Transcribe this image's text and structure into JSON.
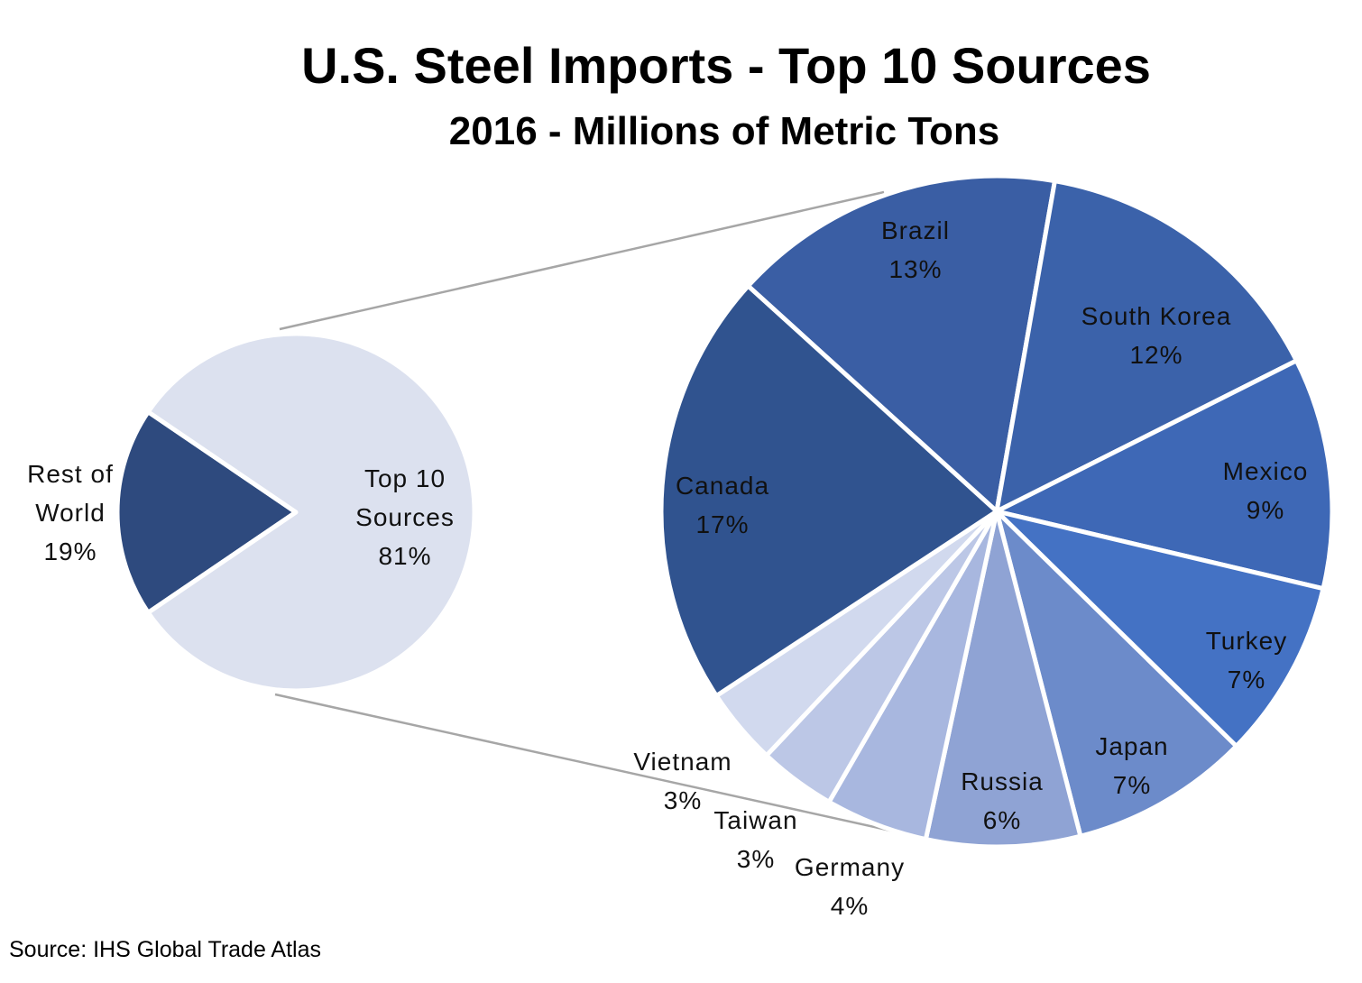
{
  "chart_data": {
    "type": "pie",
    "subtype": "pie-of-pie",
    "title": "U.S. Steel Imports - Top 10 Sources",
    "subtitle": "2016 - Millions of Metric Tons",
    "source": "Source: IHS Global Trade Atlas",
    "primary": [
      {
        "label": "Rest of World",
        "lines": [
          "Rest of",
          "World"
        ],
        "pct": "19%",
        "value": 19,
        "color": "#2e4a7e"
      },
      {
        "label": "Top 10 Sources",
        "lines": [
          "Top 10",
          "Sources"
        ],
        "pct": "81%",
        "value": 81,
        "color": "#dce1ef"
      }
    ],
    "secondary": [
      {
        "label": "Brazil",
        "pct": "13%",
        "value": 13,
        "color": "#3a5ea4"
      },
      {
        "label": "South Korea",
        "pct": "12%",
        "value": 12,
        "color": "#3b62aa"
      },
      {
        "label": "Mexico",
        "pct": "9%",
        "value": 9,
        "color": "#3e68b6"
      },
      {
        "label": "Turkey",
        "pct": "7%",
        "value": 7,
        "color": "#4472c4"
      },
      {
        "label": "Japan",
        "pct": "7%",
        "value": 7,
        "color": "#6c8bca"
      },
      {
        "label": "Russia",
        "pct": "6%",
        "value": 6,
        "color": "#8fa3d4"
      },
      {
        "label": "Germany",
        "pct": "4%",
        "value": 4,
        "color": "#a8b7df"
      },
      {
        "label": "Taiwan",
        "pct": "3%",
        "value": 3,
        "color": "#bcc7e6"
      },
      {
        "label": "Vietnam",
        "pct": "3%",
        "value": 3,
        "color": "#d1d9ee"
      },
      {
        "label": "Canada",
        "pct": "17%",
        "value": 17,
        "color": "#30538f"
      }
    ]
  }
}
